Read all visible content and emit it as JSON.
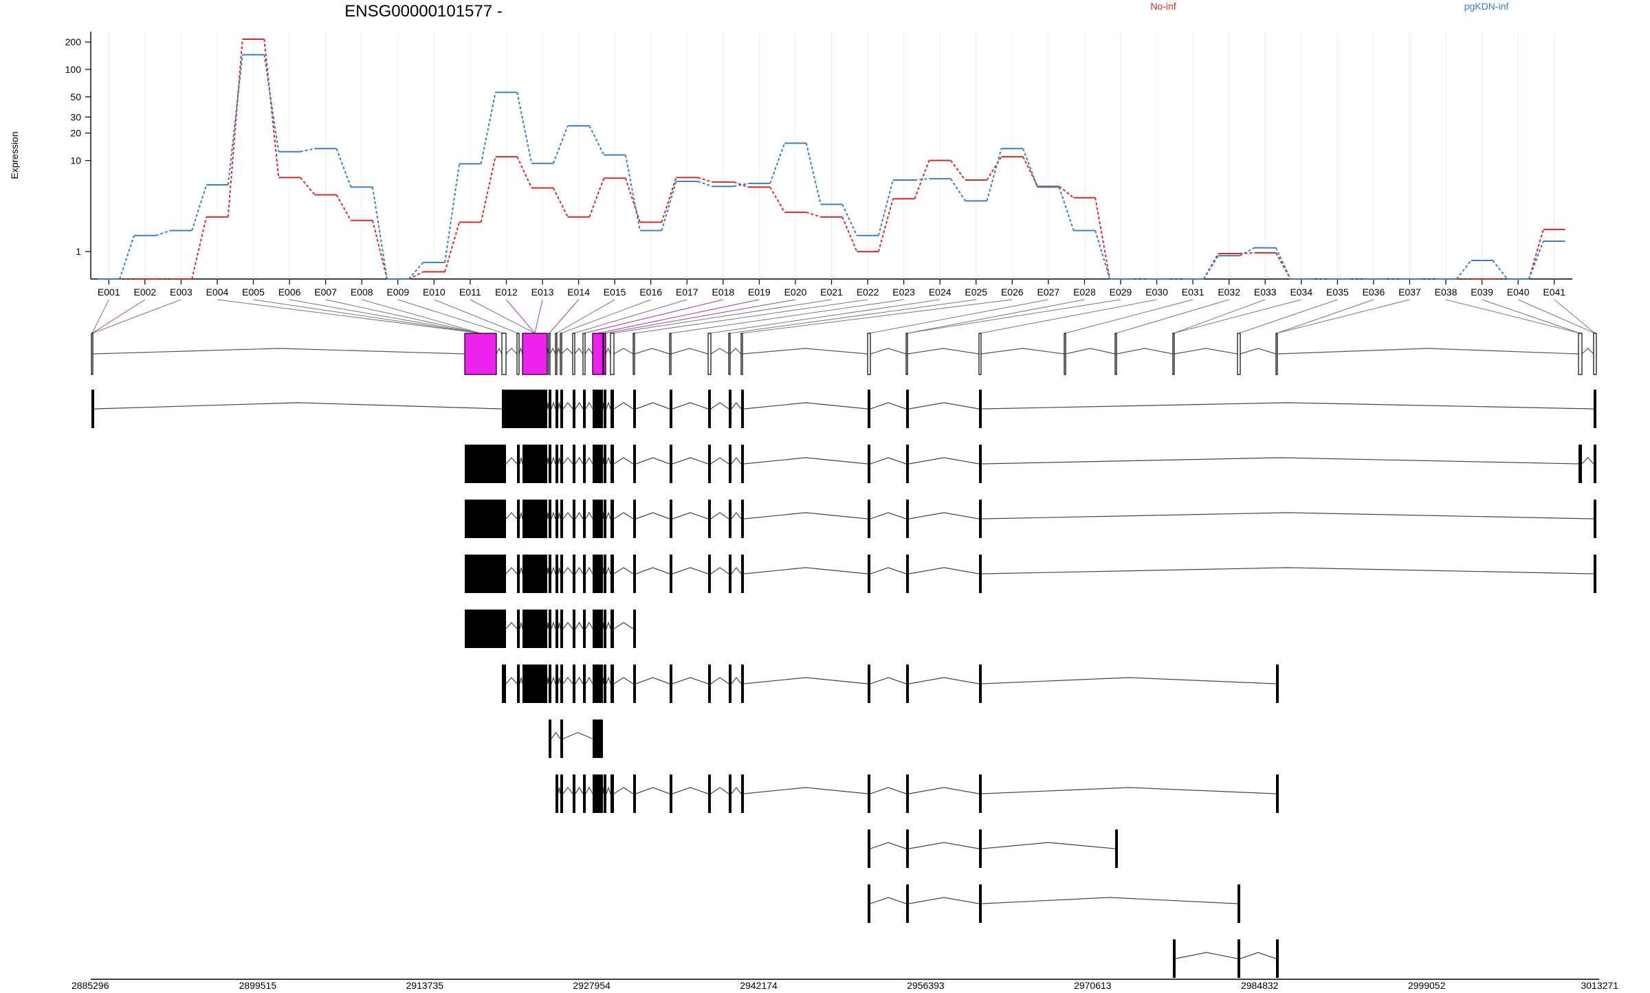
{
  "title": "ENSG00000101577 -",
  "legend": [
    {
      "name": "No-inf",
      "color": "#d62728"
    },
    {
      "name": "pgKDN-inf",
      "color": "#3b7dc0"
    }
  ],
  "chart_data": {
    "type": "line",
    "ylabel": "Expression",
    "yscale": "log",
    "yticks": [
      "1",
      "10",
      "20",
      "30",
      "50",
      "100",
      "200"
    ],
    "ylim": [
      0.5,
      260
    ],
    "categories": [
      "E001",
      "E002",
      "E003",
      "E004",
      "E005",
      "E006",
      "E007",
      "E008",
      "E009",
      "E010",
      "E011",
      "E012",
      "E013",
      "E014",
      "E015",
      "E016",
      "E017",
      "E018",
      "E019",
      "E020",
      "E021",
      "E022",
      "E023",
      "E024",
      "E025",
      "E026",
      "E027",
      "E028",
      "E029",
      "E030",
      "E031",
      "E032",
      "E033",
      "E034",
      "E035",
      "E036",
      "E037",
      "E038",
      "E039",
      "E040",
      "E041"
    ],
    "series": [
      {
        "name": "No-inf",
        "color": "#d62728",
        "values": [
          0.5,
          0.5,
          0.5,
          2.4,
          215,
          6.5,
          4.2,
          2.2,
          0.5,
          0.6,
          2.1,
          11,
          5,
          2.4,
          6.4,
          2.1,
          6.5,
          5.8,
          5.1,
          2.7,
          2.4,
          1.0,
          3.8,
          10,
          6.1,
          11,
          5.2,
          3.9,
          0.5,
          0.5,
          0.5,
          0.95,
          0.97,
          0.5,
          0.5,
          0.5,
          0.5,
          0.5,
          0.5,
          0.5,
          1.75
        ]
      },
      {
        "name": "pgKDN-inf",
        "color": "#3b7dc0",
        "values": [
          0.5,
          1.5,
          1.7,
          5.4,
          145,
          12.5,
          13.5,
          5.1,
          0.5,
          0.76,
          9.2,
          56,
          9.3,
          24,
          11.5,
          1.7,
          5.9,
          5.2,
          5.6,
          15.5,
          3.3,
          1.5,
          6.1,
          6.3,
          3.6,
          13.5,
          5.1,
          1.7,
          0.5,
          0.5,
          0.5,
          0.9,
          1.1,
          0.5,
          0.5,
          0.5,
          0.5,
          0.5,
          0.8,
          0.5,
          1.3
        ]
      }
    ]
  },
  "genome_axis": {
    "ticks": [
      "2885296",
      "2899515",
      "2913735",
      "2927954",
      "2942174",
      "2956393",
      "2970613",
      "2984832",
      "2999052",
      "3013271"
    ]
  }
}
